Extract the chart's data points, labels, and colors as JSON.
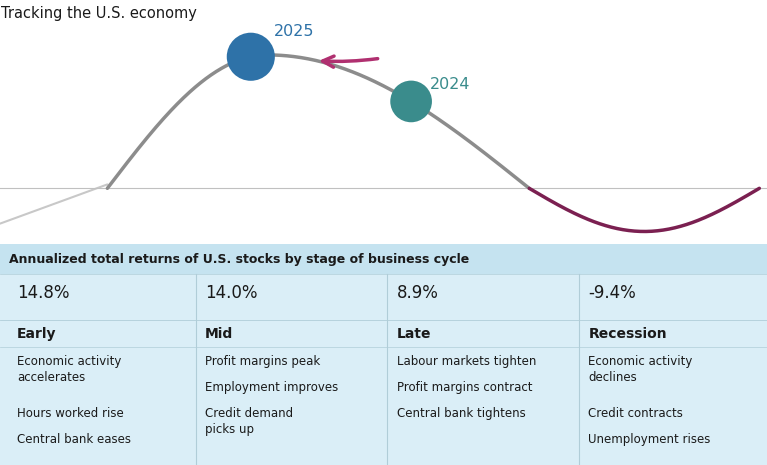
{
  "title": "Tracking the U.S. economy",
  "title_fontsize": 10.5,
  "background_color": "#ffffff",
  "curve_color": "#8c8c8c",
  "recession_curve_color": "#7b2051",
  "dot_2025_color": "#2e72a8",
  "dot_2024_color": "#3a8c8c",
  "arrow_color": "#b03070",
  "label_2025": "2025",
  "label_2024": "2024",
  "label_2025_color": "#2e72a8",
  "label_2024_color": "#3a8c8c",
  "table_bg_color": "#daeef7",
  "table_header_bg": "#c5e3f0",
  "divider_color": "#b0cdd8",
  "table_title": "Annualized total returns of U.S. stocks by stage of business cycle",
  "stages": [
    "Early",
    "Mid",
    "Late",
    "Recession"
  ],
  "returns": [
    "14.8%",
    "14.0%",
    "8.9%",
    "-9.4%"
  ],
  "bullets": [
    [
      "Economic activity\naccelerates",
      "Hours worked rise",
      "Central bank eases"
    ],
    [
      "Profit margins peak",
      "Employment improves",
      "Credit demand\npicks up"
    ],
    [
      "Labour markets tighten",
      "Profit margins contract",
      "Central bank tightens"
    ],
    [
      "Economic activity\ndeclines",
      "Credit contracts",
      "Unemployment rises"
    ]
  ]
}
